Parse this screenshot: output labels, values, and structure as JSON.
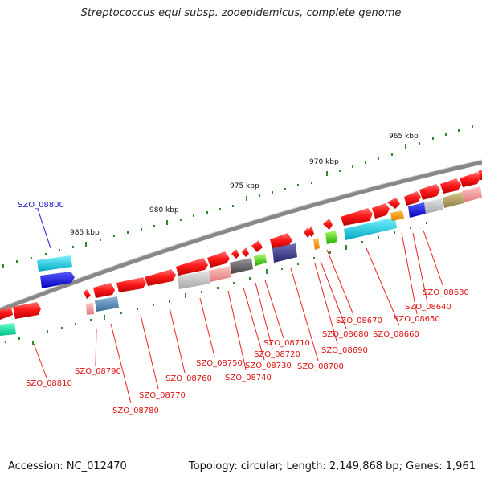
{
  "title": "Streptococcus equi subsp. zooepidemicus, complete genome",
  "footer": {
    "accession": "Accession: NC_012470",
    "stats": "Topology: circular; Length: 2,149,868 bp; Genes: 1,961"
  },
  "map": {
    "kbp_labels": [
      "965 kbp",
      "970 kbp",
      "975 kbp",
      "980 kbp",
      "985 kbp"
    ],
    "highlighted_gene": "SZO_08800",
    "gene_labels": [
      "SZO_08630",
      "SZO_08640",
      "SZO_08650",
      "SZO_08660",
      "SZO_08670",
      "SZO_08680",
      "SZO_08690",
      "SZO_08700",
      "SZO_08710",
      "SZO_08720",
      "SZO_08730",
      "SZO_08740",
      "SZO_08750",
      "SZO_08760",
      "SZO_08770",
      "SZO_08780",
      "SZO_08790",
      "SZO_08810"
    ],
    "colors": {
      "backbone": "#888888",
      "tick": "#2e8b2e",
      "gene": "#ee1111",
      "label": "#dd1111",
      "highlight": "#1a1acc"
    }
  }
}
